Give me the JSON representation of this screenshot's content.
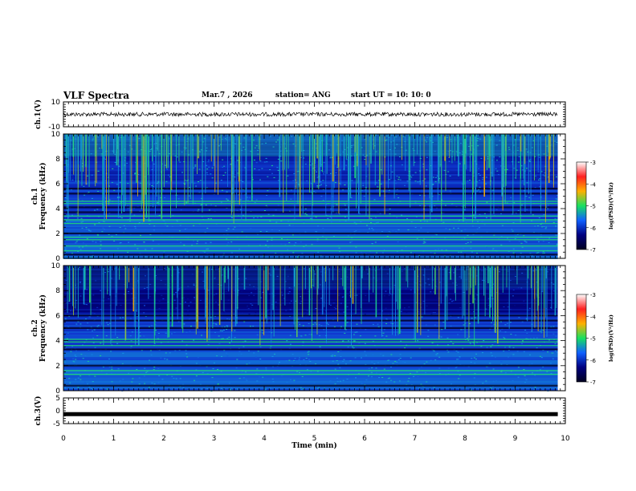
{
  "header": {
    "title": "VLF Spectra",
    "date": "Mar.7 , 2026",
    "station": "station= ANG",
    "start_ut": "start UT =  10: 10: 0"
  },
  "colorbar": {
    "label": "log(PSD)(V²/Hz)",
    "ticks": [
      "-3",
      "-4",
      "-5",
      "-6",
      "-7"
    ],
    "colors": [
      "#ffffff",
      "#ff2020",
      "#ffb000",
      "#18e060",
      "#1060ff",
      "#000080",
      "#000020"
    ]
  },
  "chart_data": [
    {
      "type": "line",
      "panel": "ch1-waveform",
      "ylabel": "ch.1(V)",
      "ylim": [
        -10,
        10
      ],
      "yticks": [
        "10",
        "-10"
      ],
      "trace_level": 0,
      "trace_color": "#000000"
    },
    {
      "type": "heatmap",
      "panel": "ch1-spectrogram",
      "ylabel": "ch.1\nFrequency (kHz)",
      "ylim": [
        0,
        10
      ],
      "yticks": [
        "0",
        "2",
        "4",
        "6",
        "8",
        "10"
      ],
      "color_scale": [
        -7,
        -3
      ],
      "bright_bands_khz": [
        4.4,
        4.6,
        3.1,
        3.4,
        2.8,
        1.7,
        1.5,
        1.0,
        0.6
      ],
      "dark_bands_khz": [
        5.2,
        5.6,
        4.1,
        3.7,
        2.0,
        0.3
      ]
    },
    {
      "type": "heatmap",
      "panel": "ch2-spectrogram",
      "ylabel": "ch.2\nFrequency (kHz)",
      "ylim": [
        0,
        10
      ],
      "yticks": [
        "0",
        "2",
        "4",
        "6",
        "8",
        "10"
      ],
      "color_scale": [
        -7,
        -3
      ],
      "bright_bands_khz": [
        3.9,
        4.1,
        3.6,
        1.6,
        1.3
      ],
      "dark_bands_khz": [
        6.0,
        5.6,
        5.0,
        3.3,
        2.0,
        0.4
      ]
    },
    {
      "type": "line",
      "panel": "ch3-waveform",
      "ylabel": "ch.3(V)",
      "ylim": [
        -5,
        5
      ],
      "yticks": [
        "5",
        "0",
        "-5"
      ],
      "trace_level": -1.3,
      "trace_color": "#000000"
    }
  ],
  "xaxis": {
    "xlabel": "Time  (min)",
    "xlim": [
      0,
      10
    ],
    "ticks": [
      "0",
      "1",
      "2",
      "3",
      "4",
      "5",
      "6",
      "7",
      "8",
      "9",
      "10"
    ],
    "data_end_min": 9.85
  }
}
